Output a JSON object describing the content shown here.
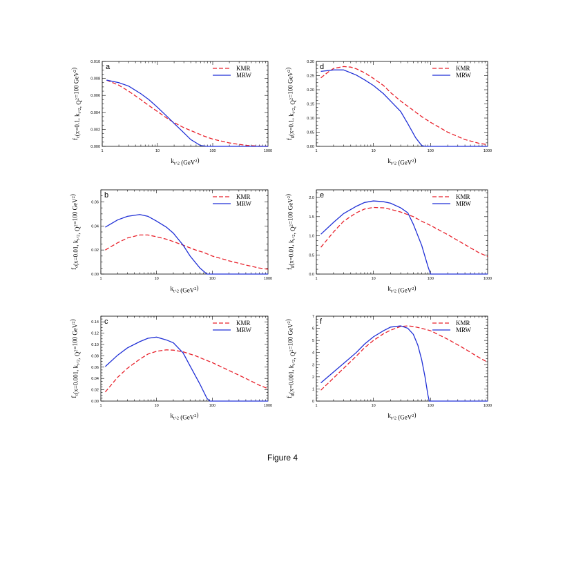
{
  "caption": "Figure 4",
  "colors": {
    "KMR": "#e8202a",
    "MRW": "#1f2fd6",
    "axis": "#000000"
  },
  "chart_data": [
    {
      "type": "line",
      "panel": "a",
      "xlabel": "k_t^2 (GeV^2)",
      "xscale": "log",
      "xlim": [
        1,
        1000
      ],
      "xticks": [
        "1",
        "10",
        "100",
        "1000"
      ],
      "ylabel": "f_c(x=0.1, k_t^2, Q^2=100 GeV^2)",
      "ylim": [
        0,
        0.01
      ],
      "yticks": [
        "0.000",
        "0.002",
        "0.004",
        "0.006",
        "0.008",
        "0.010"
      ],
      "legend": [
        "KMR",
        "MRW"
      ],
      "series": [
        {
          "name": "KMR",
          "style": "dashed",
          "points": [
            [
              1.2,
              0.0078
            ],
            [
              2,
              0.0072
            ],
            [
              3,
              0.0065
            ],
            [
              5,
              0.0055
            ],
            [
              7,
              0.0048
            ],
            [
              10,
              0.0041
            ],
            [
              15,
              0.0033
            ],
            [
              20,
              0.0028
            ],
            [
              30,
              0.0022
            ],
            [
              50,
              0.0016
            ],
            [
              70,
              0.0012
            ],
            [
              100,
              0.00085
            ],
            [
              200,
              0.0004
            ],
            [
              400,
              0.00012
            ],
            [
              700,
              2e-05
            ],
            [
              1000,
              0
            ]
          ]
        },
        {
          "name": "MRW",
          "style": "solid",
          "points": [
            [
              1.2,
              0.0078
            ],
            [
              2,
              0.0075
            ],
            [
              3,
              0.0071
            ],
            [
              5,
              0.0062
            ],
            [
              7,
              0.0055
            ],
            [
              10,
              0.0046
            ],
            [
              15,
              0.0035
            ],
            [
              20,
              0.0027
            ],
            [
              30,
              0.0016
            ],
            [
              40,
              0.0008
            ],
            [
              60,
              0.0001
            ],
            [
              80,
              0
            ],
            [
              1000,
              0
            ]
          ]
        }
      ]
    },
    {
      "type": "line",
      "panel": "d",
      "xlabel": "k_t^2 (GeV^2)",
      "xscale": "log",
      "xlim": [
        1,
        1000
      ],
      "xticks": [
        "1",
        "10",
        "100",
        "1000"
      ],
      "ylabel": "f_g(x=0.1, k_t^2, Q^2=100 GeV^2)",
      "ylim": [
        0,
        0.3
      ],
      "yticks": [
        "0.00",
        "0.05",
        "0.10",
        "0.15",
        "0.20",
        "0.25",
        "0.30"
      ],
      "legend": [
        "KMR",
        "MRW"
      ],
      "series": [
        {
          "name": "KMR",
          "style": "dashed",
          "points": [
            [
              1.2,
              0.242
            ],
            [
              1.6,
              0.262
            ],
            [
              2,
              0.275
            ],
            [
              3,
              0.282
            ],
            [
              4,
              0.28
            ],
            [
              5,
              0.274
            ],
            [
              7,
              0.26
            ],
            [
              10,
              0.24
            ],
            [
              15,
              0.215
            ],
            [
              20,
              0.19
            ],
            [
              30,
              0.16
            ],
            [
              50,
              0.127
            ],
            [
              70,
              0.105
            ],
            [
              100,
              0.085
            ],
            [
              200,
              0.05
            ],
            [
              400,
              0.024
            ],
            [
              700,
              0.011
            ],
            [
              1000,
              0.006
            ]
          ]
        },
        {
          "name": "MRW",
          "style": "solid",
          "points": [
            [
              1.2,
              0.265
            ],
            [
              2,
              0.27
            ],
            [
              3,
              0.27
            ],
            [
              5,
              0.252
            ],
            [
              7,
              0.235
            ],
            [
              10,
              0.215
            ],
            [
              15,
              0.186
            ],
            [
              20,
              0.16
            ],
            [
              30,
              0.123
            ],
            [
              40,
              0.08
            ],
            [
              55,
              0.03
            ],
            [
              70,
              0.003
            ],
            [
              80,
              0
            ],
            [
              1000,
              0
            ]
          ]
        }
      ]
    },
    {
      "type": "line",
      "panel": "b",
      "xlabel": "k_t^2 (GeV^2)",
      "xscale": "log",
      "xlim": [
        1,
        1000
      ],
      "xticks": [
        "1",
        "10",
        "100",
        "1000"
      ],
      "ylabel": "f_c(x=0.01, k_t^2, Q^2=100 GeV^2)",
      "ylim": [
        0,
        0.07
      ],
      "yticks": [
        "0.00",
        "0.02",
        "0.04",
        "0.06"
      ],
      "legend": [
        "KMR",
        "MRW"
      ],
      "series": [
        {
          "name": "KMR",
          "style": "dashed",
          "points": [
            [
              1.2,
              0.02
            ],
            [
              2,
              0.026
            ],
            [
              3,
              0.03
            ],
            [
              5,
              0.0325
            ],
            [
              7,
              0.0325
            ],
            [
              10,
              0.031
            ],
            [
              15,
              0.029
            ],
            [
              20,
              0.027
            ],
            [
              30,
              0.024
            ],
            [
              50,
              0.02
            ],
            [
              70,
              0.018
            ],
            [
              100,
              0.015
            ],
            [
              200,
              0.011
            ],
            [
              400,
              0.0075
            ],
            [
              700,
              0.005
            ],
            [
              1000,
              0.004
            ]
          ]
        },
        {
          "name": "MRW",
          "style": "solid",
          "points": [
            [
              1.2,
              0.039
            ],
            [
              2,
              0.045
            ],
            [
              3,
              0.048
            ],
            [
              5,
              0.0495
            ],
            [
              7,
              0.048
            ],
            [
              10,
              0.044
            ],
            [
              15,
              0.039
            ],
            [
              20,
              0.034
            ],
            [
              30,
              0.024
            ],
            [
              40,
              0.015
            ],
            [
              60,
              0.005
            ],
            [
              80,
              0
            ],
            [
              1000,
              0
            ]
          ]
        }
      ]
    },
    {
      "type": "line",
      "panel": "e",
      "xlabel": "k_t^2 (GeV^2)",
      "xscale": "log",
      "xlim": [
        1,
        1000
      ],
      "xticks": [
        "1",
        "10",
        "100",
        "1000"
      ],
      "ylabel": "f_g(x=0.01, k_t^2, Q^2=100 GeV^2)",
      "ylim": [
        0,
        2.2
      ],
      "yticks": [
        "0.0",
        "0.5",
        "1.0",
        "1.5",
        "2.0"
      ],
      "legend": [
        "KMR",
        "MRW"
      ],
      "series": [
        {
          "name": "KMR",
          "style": "dashed",
          "points": [
            [
              1.2,
              0.7
            ],
            [
              2,
              1.1
            ],
            [
              3,
              1.38
            ],
            [
              5,
              1.6
            ],
            [
              7,
              1.7
            ],
            [
              10,
              1.74
            ],
            [
              15,
              1.73
            ],
            [
              20,
              1.69
            ],
            [
              30,
              1.62
            ],
            [
              50,
              1.5
            ],
            [
              70,
              1.38
            ],
            [
              100,
              1.27
            ],
            [
              200,
              1.03
            ],
            [
              400,
              0.77
            ],
            [
              700,
              0.56
            ],
            [
              1000,
              0.46
            ]
          ]
        },
        {
          "name": "MRW",
          "style": "solid",
          "points": [
            [
              1.2,
              1.04
            ],
            [
              2,
              1.35
            ],
            [
              3,
              1.58
            ],
            [
              5,
              1.77
            ],
            [
              7,
              1.87
            ],
            [
              10,
              1.91
            ],
            [
              15,
              1.89
            ],
            [
              20,
              1.85
            ],
            [
              30,
              1.73
            ],
            [
              40,
              1.6
            ],
            [
              50,
              1.3
            ],
            [
              70,
              0.75
            ],
            [
              90,
              0.2
            ],
            [
              100,
              0
            ],
            [
              1000,
              0
            ]
          ]
        }
      ]
    },
    {
      "type": "line",
      "panel": "c",
      "xlabel": "k_t^2 (GeV^2)",
      "xscale": "log",
      "xlim": [
        1,
        1000
      ],
      "xticks": [
        "1",
        "10",
        "100",
        "1000"
      ],
      "ylabel": "f_c(x=0.001, k_t^2, Q^2=100 GeV^2)",
      "ylim": [
        0,
        0.15
      ],
      "yticks": [
        "0.00",
        "0.02",
        "0.04",
        "0.06",
        "0.08",
        "0.10",
        "0.12",
        "0.14"
      ],
      "legend": [
        "KMR",
        "MRW"
      ],
      "series": [
        {
          "name": "KMR",
          "style": "dashed",
          "points": [
            [
              1.2,
              0.016
            ],
            [
              2,
              0.042
            ],
            [
              3,
              0.058
            ],
            [
              5,
              0.074
            ],
            [
              7,
              0.083
            ],
            [
              10,
              0.088
            ],
            [
              15,
              0.0905
            ],
            [
              20,
              0.09
            ],
            [
              30,
              0.087
            ],
            [
              50,
              0.08
            ],
            [
              70,
              0.074
            ],
            [
              100,
              0.068
            ],
            [
              200,
              0.054
            ],
            [
              400,
              0.04
            ],
            [
              700,
              0.028
            ],
            [
              1000,
              0.022
            ]
          ]
        },
        {
          "name": "MRW",
          "style": "solid",
          "points": [
            [
              1.2,
              0.061
            ],
            [
              2,
              0.081
            ],
            [
              3,
              0.094
            ],
            [
              5,
              0.105
            ],
            [
              7,
              0.111
            ],
            [
              10,
              0.113
            ],
            [
              15,
              0.108
            ],
            [
              20,
              0.103
            ],
            [
              30,
              0.085
            ],
            [
              40,
              0.062
            ],
            [
              60,
              0.03
            ],
            [
              80,
              0.005
            ],
            [
              90,
              0
            ],
            [
              1000,
              0
            ]
          ]
        }
      ]
    },
    {
      "type": "line",
      "panel": "f",
      "xlabel": "k_t^2 (GeV^2)",
      "xscale": "log",
      "xlim": [
        1,
        1000
      ],
      "xticks": [
        "1",
        "10",
        "100",
        "1000"
      ],
      "ylabel": "f_g(x=0.001, k_t^2, Q^2=100 GeV^2)",
      "ylim": [
        0,
        7
      ],
      "yticks": [
        "0",
        "1",
        "2",
        "3",
        "4",
        "5",
        "6",
        "7"
      ],
      "legend": [
        "KMR",
        "MRW"
      ],
      "series": [
        {
          "name": "KMR",
          "style": "dashed",
          "points": [
            [
              1.2,
              0.9
            ],
            [
              2,
              1.9
            ],
            [
              3,
              2.7
            ],
            [
              5,
              3.7
            ],
            [
              7,
              4.4
            ],
            [
              10,
              5.0
            ],
            [
              15,
              5.55
            ],
            [
              20,
              5.85
            ],
            [
              30,
              6.15
            ],
            [
              40,
              6.2
            ],
            [
              50,
              6.15
            ],
            [
              70,
              6.0
            ],
            [
              100,
              5.8
            ],
            [
              200,
              5.1
            ],
            [
              400,
              4.3
            ],
            [
              700,
              3.6
            ],
            [
              1000,
              3.2
            ]
          ]
        },
        {
          "name": "MRW",
          "style": "solid",
          "points": [
            [
              1.2,
              1.5
            ],
            [
              2,
              2.4
            ],
            [
              3,
              3.1
            ],
            [
              5,
              4.0
            ],
            [
              7,
              4.7
            ],
            [
              10,
              5.3
            ],
            [
              15,
              5.8
            ],
            [
              20,
              6.1
            ],
            [
              30,
              6.2
            ],
            [
              40,
              6.0
            ],
            [
              50,
              5.5
            ],
            [
              60,
              4.6
            ],
            [
              70,
              3.4
            ],
            [
              80,
              2.0
            ],
            [
              90,
              0.5
            ],
            [
              95,
              0
            ],
            [
              1000,
              0
            ]
          ]
        }
      ]
    }
  ]
}
